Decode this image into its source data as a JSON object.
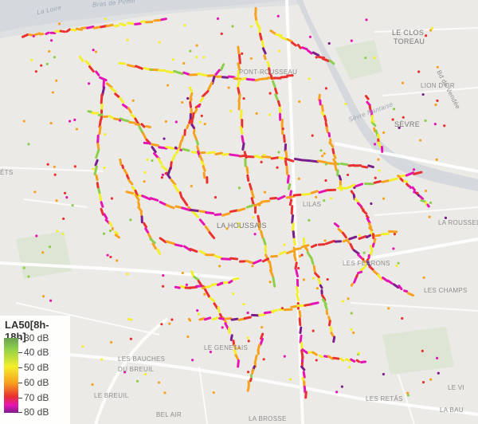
{
  "map": {
    "place_labels": [
      {
        "text": "La Loire",
        "kind": "water"
      },
      {
        "text": "Bras de Pirmil",
        "kind": "water"
      },
      {
        "text": "LE CLOS",
        "kind": "big"
      },
      {
        "text": "TOREAU",
        "kind": "big"
      },
      {
        "text": "LION D'OR",
        "kind": "small"
      },
      {
        "text": "SÈVRE",
        "kind": "big"
      },
      {
        "text": "ÉTS",
        "kind": "small"
      },
      {
        "text": "LA HOUSSAIS",
        "kind": "big"
      },
      {
        "text": "LA ROUSSELIÈ",
        "kind": "small"
      },
      {
        "text": "LES CHAMPS",
        "kind": "small"
      },
      {
        "text": "LES BAUCHES",
        "kind": "small"
      },
      {
        "text": "DU BREUIL",
        "kind": "small"
      },
      {
        "text": "LE BREUIL",
        "kind": "small"
      },
      {
        "text": "BEL AIR",
        "kind": "small"
      },
      {
        "text": "LA BROSSE",
        "kind": "small"
      },
      {
        "text": "LES RETÂS",
        "kind": "small"
      },
      {
        "text": "LE VI",
        "kind": "small"
      },
      {
        "text": "LA BAU",
        "kind": "small"
      },
      {
        "text": "LE GENETAIS",
        "kind": "small"
      },
      {
        "text": "PONT-ROUSSEAU",
        "kind": "small"
      },
      {
        "text": "LILAS",
        "kind": "small"
      },
      {
        "text": "LES FERRONS",
        "kind": "small"
      },
      {
        "text": "Sèvre Nantaise",
        "kind": "water"
      },
      {
        "text": "Bd de Vendée",
        "kind": "small"
      }
    ],
    "colors": {
      "background": "#eceae6",
      "roads": "#ffffff",
      "river": "#d5d9dd",
      "green_area": "#dde5d5"
    }
  },
  "legend": {
    "title": "LA50[8h-18h]",
    "labels": [
      "30 dB",
      "40 dB",
      "50 dB",
      "60 dB",
      "70 dB",
      "80 dB"
    ],
    "colors": [
      "#6c9f54",
      "#8ccf4a",
      "#f3ef2a",
      "#f7a21f",
      "#e9312f",
      "#e514b4",
      "#7a1e8c"
    ]
  }
}
